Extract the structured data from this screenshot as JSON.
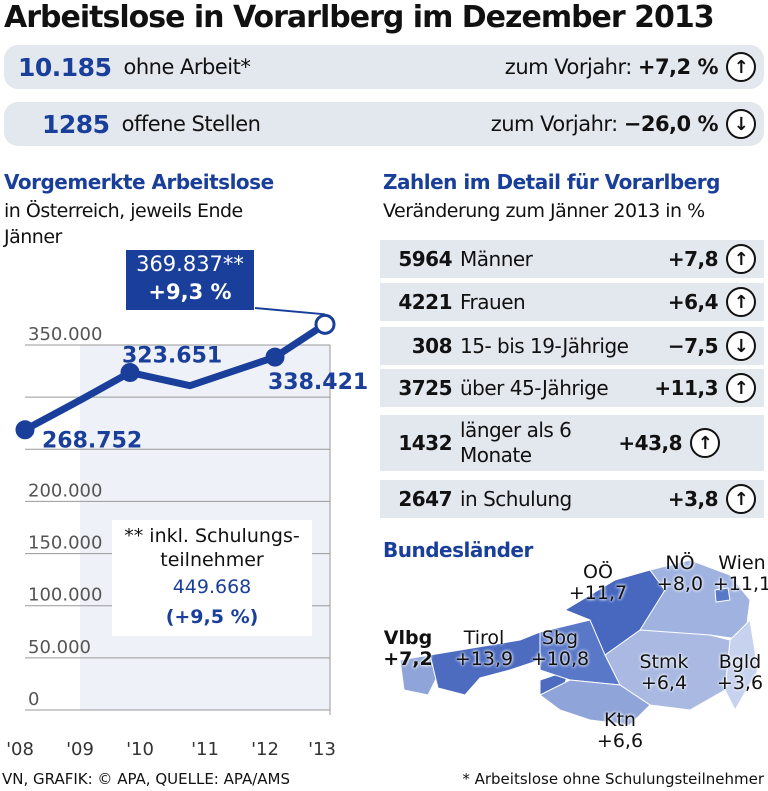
{
  "title": "Arbeitslose in Vorarlberg im Dezember 2013",
  "summary": [
    {
      "value": "10.185",
      "label": "ohne Arbeit*",
      "change_label": "zum Vorjahr:",
      "change": "+7,2 %",
      "direction": "up"
    },
    {
      "value": "1285",
      "label": "offene Stellen",
      "change_label": "zum Vorjahr:",
      "change": "−26,0 %",
      "direction": "down"
    }
  ],
  "left": {
    "heading": "Vorgemerkte Arbeitslose",
    "subheading": "in Österreich, jeweils Ende Jänner",
    "callout": {
      "value": "369.837**",
      "change": "+9,3 %"
    },
    "note": {
      "title": "** inkl. Schulungs-teilnehmer",
      "value": "449.668",
      "change": "(+9,5 %)"
    }
  },
  "chart_data": {
    "type": "line",
    "categories": [
      "'08",
      "'09",
      "'10",
      "'11",
      "'12",
      "'13"
    ],
    "values": [
      268752,
      297000,
      323651,
      311000,
      338421,
      369837
    ],
    "data_labels": [
      "268.752",
      "",
      "323.651",
      "",
      "338.421",
      "369.837**"
    ],
    "yticks": [
      "0",
      "50.000",
      "100.000",
      "150.000",
      "200.000",
      "",
      "",
      "350.000"
    ],
    "ylim": [
      0,
      350000
    ],
    "grid": true,
    "color": "#1a3f9b"
  },
  "right": {
    "heading": "Zahlen im Detail für Vorarlberg",
    "subheading": "Veränderung zum Jänner 2013 in %",
    "rows": [
      {
        "n": "5964",
        "label": "Männer",
        "change": "+7,8",
        "direction": "up"
      },
      {
        "n": "4221",
        "label": "Frauen",
        "change": "+6,4",
        "direction": "up"
      },
      {
        "n": "308",
        "label": "15- bis 19-Jährige",
        "change": "−7,5",
        "direction": "down"
      },
      {
        "n": "3725",
        "label": "über 45-Jährige",
        "change": "+11,3",
        "direction": "up"
      },
      {
        "n": "1432",
        "label": "länger als 6 Monate",
        "change": "+43,8",
        "direction": "up"
      },
      {
        "n": "2647",
        "label": "in Schulung",
        "change": "+3,8",
        "direction": "up"
      }
    ]
  },
  "map": {
    "heading": "Bundesländer",
    "states": [
      {
        "name": "Vlbg",
        "value": "+7,2"
      },
      {
        "name": "Tirol",
        "value": "+13,9"
      },
      {
        "name": "Sbg",
        "value": "+10,8"
      },
      {
        "name": "OÖ",
        "value": "+11,7"
      },
      {
        "name": "NÖ",
        "value": "+8,0"
      },
      {
        "name": "Wien",
        "value": "+11,1"
      },
      {
        "name": "Stmk",
        "value": "+6,4"
      },
      {
        "name": "Bgld",
        "value": "+3,6"
      },
      {
        "name": "Ktn",
        "value": "+6,6"
      }
    ]
  },
  "source": "VN, GRAFIK: © APA, QUELLE: APA/AMS",
  "footnote": "* Arbeitslose ohne Schulungsteilnehmer",
  "arrows": {
    "up": "↑",
    "down": "↓"
  }
}
